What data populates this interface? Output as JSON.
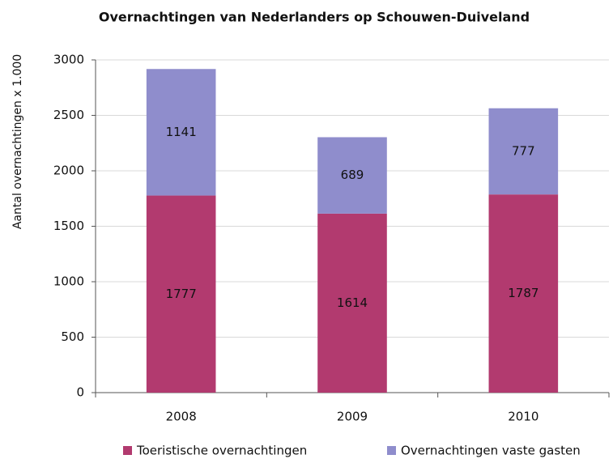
{
  "chart_data": {
    "type": "bar",
    "stacked": true,
    "title": "Overnachtingen van Nederlanders op Schouwen-Duiveland",
    "y_label": "Aantal overnachtingen x 1.000",
    "categories": [
      "2008",
      "2009",
      "2010"
    ],
    "series": [
      {
        "name": "Toeristische overnachtingen",
        "color": "#b23a6f",
        "values": [
          1777,
          1614,
          1787
        ]
      },
      {
        "name": "Overnachtingen vaste gasten",
        "color": "#8f8dcc",
        "values": [
          1141,
          689,
          777
        ]
      }
    ],
    "ylim": [
      0,
      3000
    ],
    "yticks": [
      0,
      500,
      1000,
      1500,
      2000,
      2500,
      3000
    ],
    "grid": true,
    "legend": "bottom"
  }
}
